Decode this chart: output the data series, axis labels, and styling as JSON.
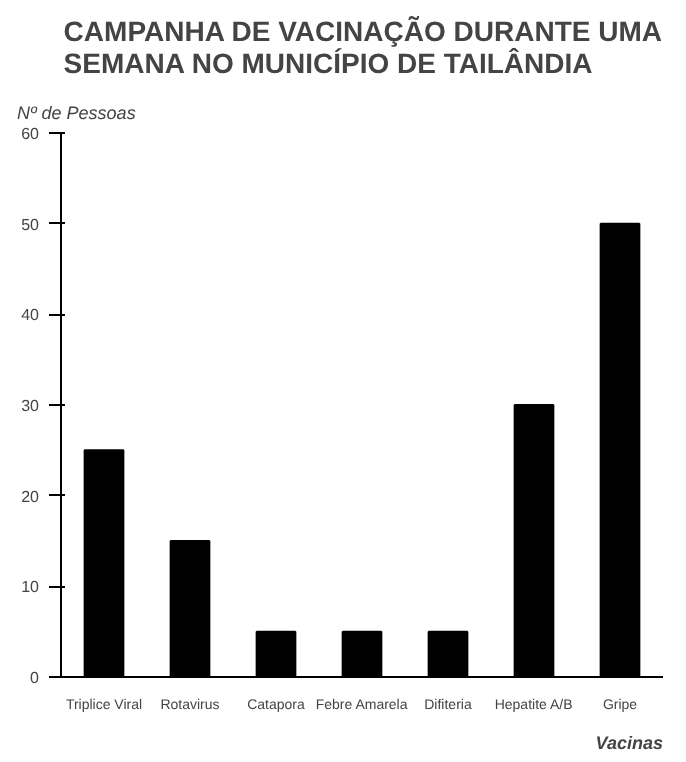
{
  "chart_data": {
    "type": "bar",
    "title": "CAMPANHA DE VACINAÇÃO DURANTE UMA\nSEMANA NO MUNICÍPIO DE TAILÂNDIA",
    "ylabel": "Nº de Pessoas",
    "xlabel": "Vacinas",
    "categories": [
      "Triplice Viral",
      "Rotavirus",
      "Catapora",
      "Febre Amarela",
      "Difiteria",
      "Hepatite A/B",
      "Gripe"
    ],
    "values": [
      25,
      15,
      5,
      5,
      5,
      30,
      50
    ],
    "color": "#000000",
    "ylim": [
      0,
      60
    ],
    "yticks": [
      0,
      10,
      20,
      30,
      40,
      50,
      60
    ],
    "grid": false
  }
}
